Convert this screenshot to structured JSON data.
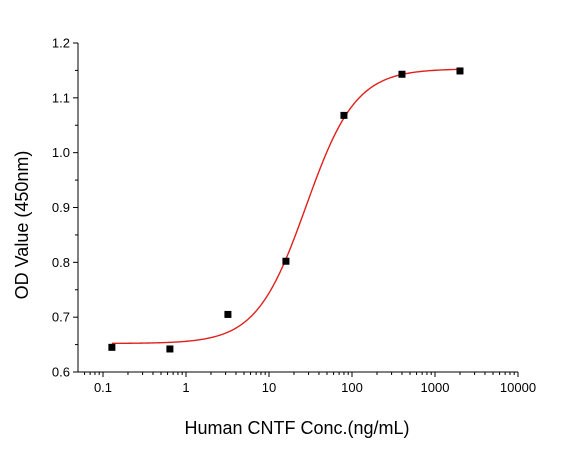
{
  "chart_data": {
    "type": "scatter",
    "xlabel": "Human CNTF Conc.(ng/mL)",
    "ylabel": "OD Value (450nm)",
    "x_scale": "log",
    "xlim": [
      0.05,
      10000
    ],
    "ylim": [
      0.6,
      1.2
    ],
    "x_ticks": [
      0.1,
      1,
      10,
      100,
      1000,
      10000
    ],
    "x_tick_labels": [
      "0.1",
      "1",
      "10",
      "100",
      "1000",
      "10000"
    ],
    "y_ticks": [
      0.6,
      0.7,
      0.8,
      0.9,
      1.0,
      1.1,
      1.2
    ],
    "y_tick_labels": [
      "0.6",
      "0.7",
      "0.8",
      "0.9",
      "1.0",
      "1.1",
      "1.2"
    ],
    "grid": false,
    "series": [
      {
        "kind": "points",
        "marker": "square",
        "color": "#000000",
        "x": [
          0.128,
          0.64,
          3.2,
          16,
          80,
          400,
          2000
        ],
        "y": [
          0.645,
          0.642,
          0.705,
          0.802,
          1.068,
          1.143,
          1.149
        ]
      },
      {
        "kind": "fit-curve",
        "color": "#e0201b",
        "model": "4PL",
        "params": {
          "bottom": 0.652,
          "top": 1.153,
          "ec50": 28,
          "hill": 1.45
        },
        "x_range": [
          0.128,
          2000
        ]
      }
    ]
  }
}
